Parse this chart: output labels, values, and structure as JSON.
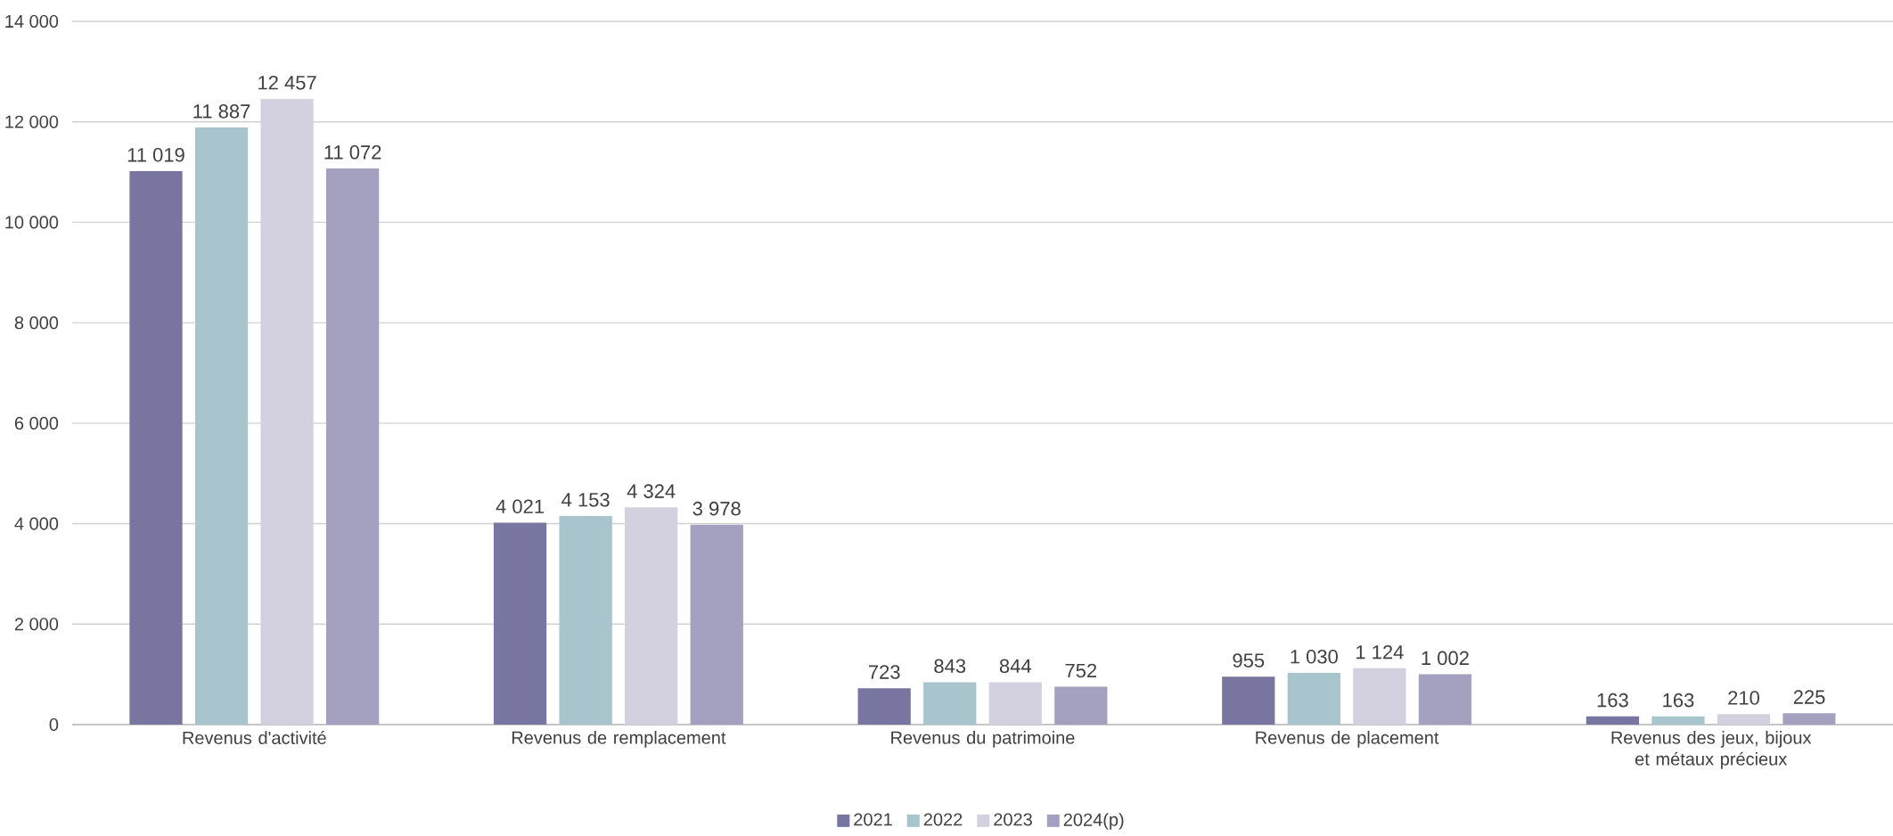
{
  "chart_data": {
    "type": "bar",
    "categories": [
      "Revenus d'activité",
      "Revenus de remplacement",
      "Revenus du patrimoine",
      "Revenus de placement",
      "Revenus des jeux, bijoux et métaux précieux"
    ],
    "series": [
      {
        "name": "2021",
        "color": "#7876a0",
        "values": [
          11019,
          4021,
          723,
          955,
          163
        ],
        "value_labels": [
          "11 019",
          "4 021",
          "723",
          "955",
          "163"
        ]
      },
      {
        "name": "2022",
        "color": "#a8c4cc",
        "values": [
          11887,
          4153,
          843,
          1030,
          163
        ],
        "value_labels": [
          "11 887",
          "4 153",
          "843",
          "1 030",
          "163"
        ]
      },
      {
        "name": "2023",
        "color": "#d3d1e0",
        "values": [
          12457,
          4324,
          844,
          1124,
          210
        ],
        "value_labels": [
          "12 457",
          "4 324",
          "844",
          "1 124",
          "210"
        ]
      },
      {
        "name": "2024(p)",
        "color": "#a3a0c0",
        "values": [
          11072,
          3978,
          752,
          1002,
          225
        ],
        "value_labels": [
          "11 072",
          "3 978",
          "752",
          "1 002",
          "225"
        ]
      }
    ],
    "ylim": [
      0,
      14000
    ],
    "yticks": [
      {
        "value": 0,
        "label": "0"
      },
      {
        "value": 2000,
        "label": "2 000"
      },
      {
        "value": 4000,
        "label": "4 000"
      },
      {
        "value": 6000,
        "label": "6 000"
      },
      {
        "value": 8000,
        "label": "8 000"
      },
      {
        "value": 10000,
        "label": "10 000"
      },
      {
        "value": 12000,
        "label": "12 000"
      },
      {
        "value": 14000,
        "label": "14 000"
      }
    ],
    "grid": "y",
    "legend": "bottom"
  }
}
